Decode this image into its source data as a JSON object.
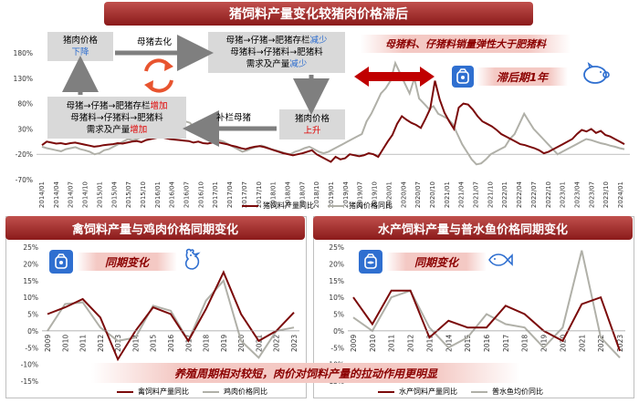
{
  "header": {
    "main_title": "猪饲料产量变化较猪肉价格滞后"
  },
  "flow": {
    "box_top_left": [
      "猪肉价格",
      "下降"
    ],
    "box_top_right": [
      "母猪→仔猪→肥猪存栏减少",
      "母猪料→仔猪料→肥猪料",
      "需求及产量减少"
    ],
    "box_bottom_right": [
      "猪肉价格",
      "上升"
    ],
    "box_bottom_left": [
      "母猪→仔猪→肥猪存栏增加",
      "母猪料→仔猪料→肥猪料",
      "需求及产量增加"
    ],
    "arrow_top_label": "母猪去化",
    "arrow_bottom_label": "补栏母猪"
  },
  "top_banner_text": "母猪料、仔猪料销量弹性大于肥猪料",
  "lag_text": "滞后期1年",
  "middle_banner_left": "同期变化",
  "middle_banner_right": "同期变化",
  "panel_left_title": "禽饲料产量与鸡肉价格同期变化",
  "panel_right_title": "水产饲料产量与普水鱼价格同期变化",
  "bottom_banner_text": "养殖周期相对较短，肉价对饲料产量的拉动作用更明显",
  "icons": {
    "feed_bag": "feed-bag-icon",
    "pig": "pig-icon",
    "chicken": "chicken-icon",
    "fish": "fish-icon",
    "cycle": "cycle-arrows-icon",
    "double_arrow": "double-arrow-icon"
  },
  "colors": {
    "feed": "#7b0a0a",
    "price": "#b0b0a8",
    "accent_red": "#e00000",
    "accent_blue": "#2f6fd0"
  },
  "chart_data": [
    {
      "type": "line",
      "title": "猪饲料产量变化较猪肉价格滞后",
      "ylim": [
        -70,
        180
      ],
      "yticks": [
        "180%",
        "130%",
        "80%",
        "30%",
        "-20%",
        "-70%"
      ],
      "ytick_values": [
        180,
        130,
        80,
        30,
        -20,
        -70
      ],
      "x_tick_labels": [
        "2014/01",
        "2014/04",
        "2014/07",
        "2014/10",
        "2015/01",
        "2015/04",
        "2015/07",
        "2015/10",
        "2016/01",
        "2016/04",
        "2016/07",
        "2016/10",
        "2017/01",
        "2017/04",
        "2017/07",
        "2017/10",
        "2018/01",
        "2018/04",
        "2018/07",
        "2018/10",
        "2019/01",
        "2019/04",
        "2019/07",
        "2019/10",
        "2020/01",
        "2020/04",
        "2020/07",
        "2020/10",
        "2021/01",
        "2021/04",
        "2021/07",
        "2021/10",
        "2022/01",
        "2022/04",
        "2022/07",
        "2022/10",
        "2023/01",
        "2023/04",
        "2023/07",
        "2023/10",
        "2024/01"
      ],
      "series": [
        {
          "name": "猪饲料产量同比",
          "values": [
            -2,
            5,
            3,
            1,
            2,
            0,
            2,
            3,
            1,
            -1,
            -3,
            -5,
            -4,
            -2,
            -1,
            0,
            2,
            1,
            3,
            5,
            6,
            4,
            8,
            10,
            12,
            14,
            12,
            10,
            9,
            8,
            7,
            6,
            3,
            5,
            2,
            1,
            3,
            4,
            2,
            0,
            -3,
            -5,
            -8,
            -10,
            -7,
            -5,
            -4,
            -6,
            -9,
            -12,
            -15,
            -18,
            -20,
            -22,
            -20,
            -18,
            -15,
            -12,
            -20,
            -25,
            -30,
            -35,
            -25,
            -30,
            -28,
            -20,
            -22,
            -24,
            -22,
            -18,
            -20,
            -25,
            -10,
            5,
            18,
            40,
            55,
            48,
            42,
            38,
            32,
            50,
            70,
            125,
            88,
            62,
            45,
            30,
            72,
            80,
            78,
            68,
            55,
            45,
            40,
            35,
            28,
            20,
            15,
            10,
            5,
            0,
            -2,
            -5,
            -8,
            -12,
            -18,
            -15,
            -10,
            -5,
            0,
            5,
            10,
            20,
            28,
            25,
            30,
            22,
            26,
            18,
            15,
            10,
            5,
            0
          ]
        },
        {
          "name": "猪肉价格同比",
          "values": [
            -5,
            -8,
            -10,
            -12,
            -14,
            -10,
            -8,
            -6,
            -10,
            -12,
            -15,
            -20,
            -18,
            -12,
            -10,
            -5,
            0,
            5,
            10,
            8,
            10,
            15,
            20,
            18,
            22,
            25,
            35,
            48,
            42,
            40,
            45,
            42,
            32,
            28,
            22,
            18,
            12,
            8,
            5,
            0,
            -5,
            -10,
            -15,
            -12,
            -8,
            -5,
            -3,
            -6,
            -10,
            -12,
            -15,
            -18,
            -20,
            -15,
            -12,
            -8,
            -5,
            -10,
            -15,
            -18,
            -15,
            -10,
            -5,
            0,
            5,
            10,
            15,
            20,
            45,
            60,
            80,
            100,
            110,
            125,
            160,
            140,
            120,
            100,
            130,
            90,
            80,
            70,
            75,
            60,
            55,
            50,
            40,
            20,
            0,
            -15,
            -30,
            -40,
            -38,
            -30,
            -20,
            -15,
            -10,
            -5,
            10,
            20,
            40,
            60,
            45,
            30,
            20,
            10,
            0,
            -10,
            -20,
            -15,
            -10,
            -5,
            0,
            5,
            10,
            8,
            5,
            2,
            0,
            -3,
            -5,
            -8,
            -10
          ]
        }
      ],
      "legend": [
        "猪饲料产量同比",
        "猪肉价格同比"
      ]
    },
    {
      "type": "line",
      "title": "禽饲料产量与鸡肉价格同期变化",
      "categories": [
        "2009",
        "2010",
        "2011",
        "2012",
        "2013",
        "2014",
        "2015",
        "2016",
        "2017",
        "2018",
        "2019",
        "2020",
        "2021",
        "2022",
        "2023"
      ],
      "ylim": [
        -15,
        25
      ],
      "yticks": [
        "25%",
        "20%",
        "15%",
        "10%",
        "5%",
        "0%",
        "-5%",
        "-10%",
        "-15%"
      ],
      "ytick_values": [
        25,
        20,
        15,
        10,
        5,
        0,
        -5,
        -10,
        -15
      ],
      "series": [
        {
          "name": "禽饲料产量同比",
          "values": [
            5,
            7,
            9.5,
            4,
            -8.5,
            0,
            7,
            5,
            -3,
            6.5,
            17.5,
            5,
            -3,
            0,
            5.5
          ]
        },
        {
          "name": "鸡肉价格同比",
          "values": [
            0,
            8,
            8.5,
            1,
            -3,
            -2,
            7.5,
            6,
            -3,
            9,
            15,
            -3,
            -8,
            0,
            1
          ]
        }
      ],
      "legend": [
        "禽饲料产量同比",
        "鸡肉价格同比"
      ]
    },
    {
      "type": "line",
      "title": "水产饲料产量与普水鱼价格同期变化",
      "categories": [
        "2009",
        "2010",
        "2011",
        "2012",
        "2013",
        "2014",
        "2015",
        "2016",
        "2017",
        "2018",
        "2019",
        "2020",
        "2021",
        "2022",
        "2023"
      ],
      "ylim": [
        -15,
        25
      ],
      "yticks": [
        "25%",
        "20%",
        "15%",
        "10%",
        "5%",
        "0%",
        "-5%",
        "-10%",
        "-15%"
      ],
      "ytick_values": [
        25,
        20,
        15,
        10,
        5,
        0,
        -5,
        -10,
        -15
      ],
      "series": [
        {
          "name": "水产饲料产量同比",
          "values": [
            10,
            2,
            12,
            12,
            -2,
            3,
            1,
            1,
            7.5,
            5,
            0,
            -3,
            8,
            10,
            -6
          ]
        },
        {
          "name": "普水鱼均价同比",
          "values": [
            4,
            0,
            10,
            12,
            1,
            -5,
            -2,
            5,
            2,
            1,
            -5,
            1,
            24,
            -2,
            -8
          ]
        }
      ],
      "legend": [
        "水产饲料产量同比",
        "普水鱼均价同比"
      ]
    }
  ]
}
